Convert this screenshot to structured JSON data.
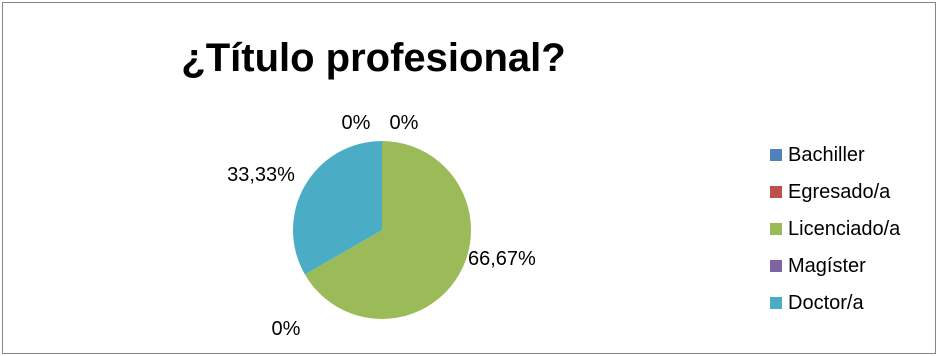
{
  "chart_data": {
    "type": "pie",
    "title": "¿Título profesional?",
    "categories": [
      "Bachiller",
      "Egresado/a",
      "Licenciado/a",
      "Magíster",
      "Doctor/a"
    ],
    "values": [
      0,
      0,
      66.67,
      0,
      33.33
    ],
    "data_labels": [
      "0%",
      "0%",
      "66,67%",
      "0%",
      "33,33%"
    ],
    "colors": [
      "#4F81BD",
      "#C0504D",
      "#9BBB59",
      "#8064A2",
      "#4BACC6"
    ],
    "legend_position": "right"
  }
}
